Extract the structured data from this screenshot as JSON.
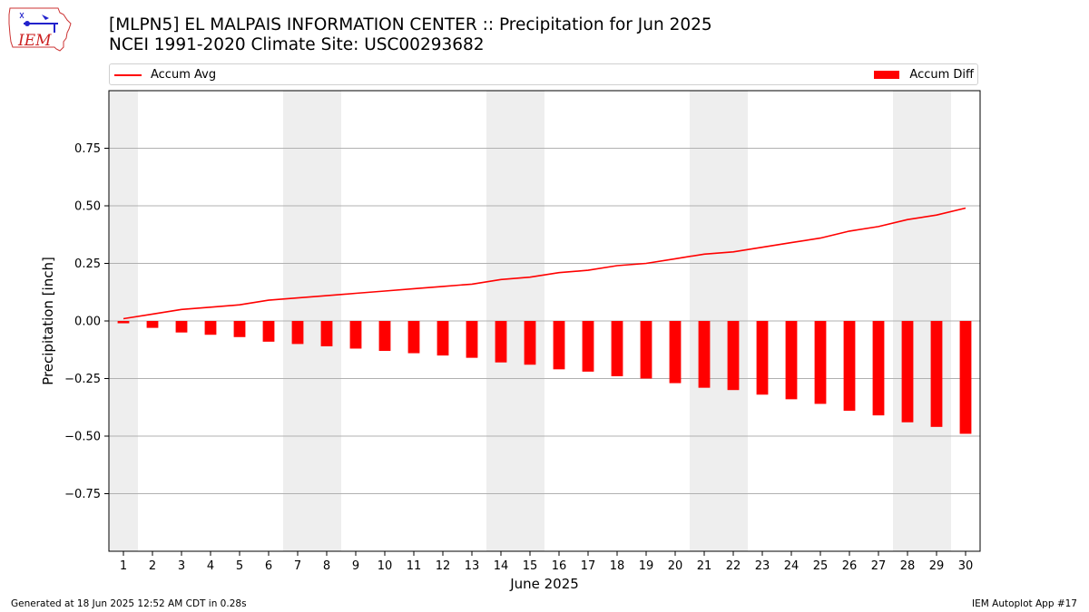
{
  "header": {
    "title_line1": "[MLPN5] EL MALPAIS INFORMATION CENTER :: Precipitation for Jun 2025",
    "title_line2": "NCEI 1991-2020 Climate Site: USC00293682",
    "logo_text": "IEM"
  },
  "legend": {
    "line_label": "Accum Avg",
    "bar_label": "Accum Diff"
  },
  "footer": {
    "left": "Generated at 18 Jun 2025 12:52 AM CDT in 0.28s",
    "right": "IEM Autoplot App #17"
  },
  "colors": {
    "series": "#ff0000",
    "weekend_shade": "#eeeeee",
    "grid": "#b0b0b0"
  },
  "chart_data": {
    "type": "bar",
    "xlabel": "June 2025",
    "ylabel": "Precipitation [inch]",
    "xlim": [
      0.5,
      30.5
    ],
    "ylim": [
      -1.0,
      1.0
    ],
    "x": [
      1,
      2,
      3,
      4,
      5,
      6,
      7,
      8,
      9,
      10,
      11,
      12,
      13,
      14,
      15,
      16,
      17,
      18,
      19,
      20,
      21,
      22,
      23,
      24,
      25,
      26,
      27,
      28,
      29,
      30
    ],
    "x_tick_labels": [
      "1",
      "2",
      "3",
      "4",
      "5",
      "6",
      "7",
      "8",
      "9",
      "10",
      "11",
      "12",
      "13",
      "14",
      "15",
      "16",
      "17",
      "18",
      "19",
      "20",
      "21",
      "22",
      "23",
      "24",
      "25",
      "26",
      "27",
      "28",
      "29",
      "30"
    ],
    "y_ticks": [
      -0.75,
      -0.5,
      -0.25,
      0.0,
      0.25,
      0.5,
      0.75
    ],
    "y_tick_labels": [
      "−0.75",
      "−0.50",
      "−0.25",
      "0.00",
      "0.25",
      "0.50",
      "0.75"
    ],
    "grid": "horizontal",
    "legend_position": "top",
    "shaded_days": [
      1,
      7,
      8,
      14,
      15,
      21,
      22,
      28,
      29
    ],
    "series": [
      {
        "name": "Accum Avg",
        "type": "line",
        "values": [
          0.01,
          0.03,
          0.05,
          0.06,
          0.07,
          0.09,
          0.1,
          0.11,
          0.12,
          0.13,
          0.14,
          0.15,
          0.16,
          0.18,
          0.19,
          0.21,
          0.22,
          0.24,
          0.25,
          0.27,
          0.29,
          0.3,
          0.32,
          0.34,
          0.36,
          0.39,
          0.41,
          0.44,
          0.46,
          0.49
        ]
      },
      {
        "name": "Accum Diff",
        "type": "bar",
        "values": [
          -0.01,
          -0.03,
          -0.05,
          -0.06,
          -0.07,
          -0.09,
          -0.1,
          -0.11,
          -0.12,
          -0.13,
          -0.14,
          -0.15,
          -0.16,
          -0.18,
          -0.19,
          -0.21,
          -0.22,
          -0.24,
          -0.25,
          -0.27,
          -0.29,
          -0.3,
          -0.32,
          -0.34,
          -0.36,
          -0.39,
          -0.41,
          -0.44,
          -0.46,
          -0.49
        ]
      }
    ]
  }
}
